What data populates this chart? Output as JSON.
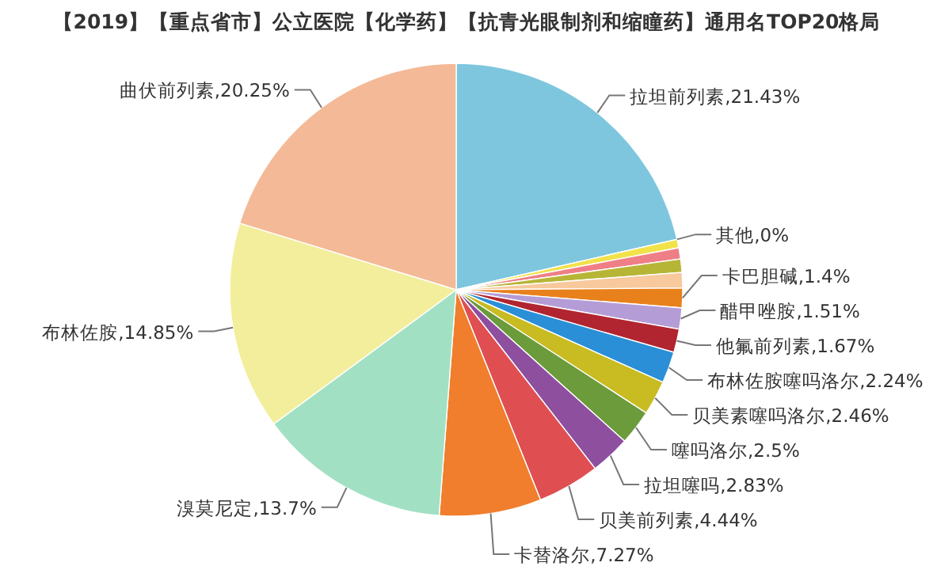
{
  "chart_data": {
    "type": "pie",
    "title": "【2019】【重点省市】公立医院【化学药】【抗青光眼制剂和缩瞳药】通用名TOP20格局",
    "categories": [
      "拉坦前列素",
      "其他",
      null,
      null,
      null,
      null,
      "卡巴胆碱",
      "醋甲唑胺",
      "他氟前列素",
      "布林佐胺噻吗洛尔",
      "贝美素噻吗洛尔",
      "噻吗洛尔",
      "拉坦噻吗",
      "贝美前列素",
      "卡替洛尔",
      "溴莫尼定",
      "布林佐胺",
      "曲伏前列素"
    ],
    "values": [
      21.43,
      0,
      0.6,
      0.8,
      0.95,
      1.1,
      1.4,
      1.51,
      1.67,
      2.24,
      2.46,
      2.5,
      2.83,
      4.44,
      7.27,
      13.7,
      14.85,
      20.25
    ],
    "value_labels": [
      "21.43%",
      "0%",
      null,
      null,
      null,
      null,
      "1.4%",
      "1.51%",
      "1.67%",
      "2.24%",
      "2.46%",
      "2.5%",
      "2.83%",
      "4.44%",
      "7.27%",
      "13.7%",
      "14.85%",
      "20.25%"
    ],
    "colors": [
      "#7ec6de",
      "#1f4e79",
      "#f2e24a",
      "#ef7f86",
      "#b7b536",
      "#f7c99c",
      "#e8811c",
      "#b49cd6",
      "#b02530",
      "#2a8fd6",
      "#c9bb22",
      "#6b9b3a",
      "#8e4f9f",
      "#df4f52",
      "#f07e2c",
      "#a2e0c4",
      "#f3ee9c",
      "#f4b996"
    ]
  }
}
